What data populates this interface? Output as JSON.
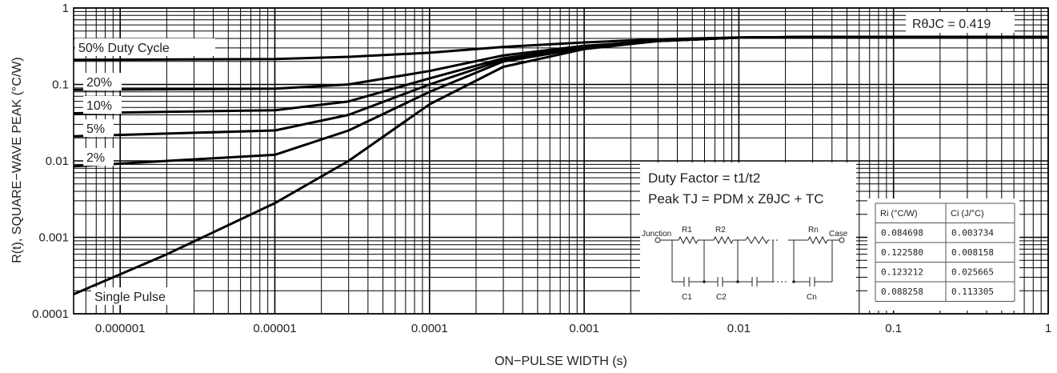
{
  "chart_data": {
    "type": "line",
    "xlabel": "ON−PULSE WIDTH (s)",
    "ylabel": "R(t), SQUARE−WAVE PEAK (°C/W)",
    "xscale": "log",
    "yscale": "log",
    "xlim": [
      5e-07,
      1
    ],
    "ylim": [
      0.0001,
      1
    ],
    "grid": true,
    "xtick_labels": [
      "0.000001",
      "0.00001",
      "0.0001",
      "0.001",
      "0.01",
      "0.1",
      "1"
    ],
    "ytick_labels": [
      "0.0001",
      "0.001",
      "0.01",
      "0.1",
      "1"
    ],
    "annotation_rth": "RθJC = 0.419",
    "series": [
      {
        "name": "50% Duty Cycle",
        "x": [
          5e-07,
          1e-05,
          3e-05,
          0.0001,
          0.0003,
          0.001,
          0.003,
          0.01,
          0.03,
          1
        ],
        "y": [
          0.21,
          0.215,
          0.23,
          0.26,
          0.31,
          0.355,
          0.39,
          0.412,
          0.419,
          0.419
        ]
      },
      {
        "name": "20%",
        "x": [
          5e-07,
          1e-05,
          3e-05,
          0.0001,
          0.0003,
          0.001,
          0.003,
          0.01,
          0.03,
          1
        ],
        "y": [
          0.085,
          0.088,
          0.1,
          0.15,
          0.24,
          0.32,
          0.37,
          0.41,
          0.419,
          0.419
        ]
      },
      {
        "name": "10%",
        "x": [
          5e-07,
          1e-05,
          3e-05,
          0.0001,
          0.0003,
          0.001,
          0.003,
          0.01,
          0.03,
          1
        ],
        "y": [
          0.042,
          0.046,
          0.06,
          0.12,
          0.22,
          0.31,
          0.37,
          0.41,
          0.419,
          0.419
        ]
      },
      {
        "name": "5%",
        "x": [
          5e-07,
          1e-05,
          3e-05,
          0.0001,
          0.0003,
          0.001,
          0.003,
          0.01,
          0.03,
          1
        ],
        "y": [
          0.021,
          0.025,
          0.04,
          0.1,
          0.21,
          0.3,
          0.37,
          0.41,
          0.419,
          0.419
        ]
      },
      {
        "name": "2%",
        "x": [
          5e-07,
          1e-05,
          3e-05,
          0.0001,
          0.0003,
          0.001,
          0.003,
          0.01,
          0.03,
          1
        ],
        "y": [
          0.0085,
          0.012,
          0.025,
          0.08,
          0.2,
          0.3,
          0.37,
          0.41,
          0.419,
          0.419
        ]
      },
      {
        "name": "Single Pulse",
        "x": [
          5e-07,
          2e-06,
          1e-05,
          3e-05,
          0.0001,
          0.0003,
          0.001,
          0.003,
          0.01,
          0.03,
          1
        ],
        "y": [
          0.00018,
          0.0006,
          0.0028,
          0.01,
          0.055,
          0.17,
          0.29,
          0.37,
          0.41,
          0.419,
          0.419
        ]
      }
    ],
    "inset": {
      "line1": "Duty Factor = t1/t2",
      "line2": "Peak TJ = PDM x ZθJC + TC",
      "network": {
        "junction": "Junction",
        "case": "Case",
        "r_labels": [
          "R1",
          "R2",
          "Rn"
        ],
        "c_labels": [
          "C1",
          "C2",
          "Cn"
        ]
      }
    },
    "table": {
      "headers": [
        "Ri (°C/W)",
        "Ci (J/°C)"
      ],
      "rows": [
        [
          "0.084698",
          "0.003734"
        ],
        [
          "0.122580",
          "0.008158"
        ],
        [
          "0.123212",
          "0.025665"
        ],
        [
          "0.088258",
          "0.113305"
        ]
      ]
    }
  }
}
